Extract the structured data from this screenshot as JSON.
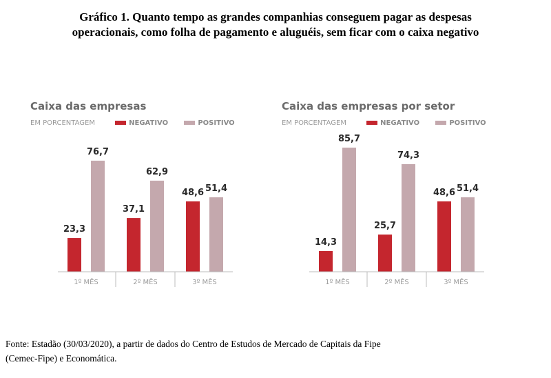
{
  "page_title": {
    "line1": "Gráfico 1. Quanto tempo as grandes companhias conseguem pagar as despesas",
    "line2": "operacionais, como folha de pagamento e aluguéis, sem ficar com o caixa negativo"
  },
  "source": {
    "line1": "Fonte: Estadão (30/03/2020), a partir de dados do Centro de Estudos de Mercado de Capitais da Fipe",
    "line2": "(Cemec-Fipe) e Economática."
  },
  "colors": {
    "negativo": "#c4262e",
    "positivo": "#c4a8ad",
    "axis": "#bdbdbd"
  },
  "chart_data": [
    {
      "type": "bar",
      "title": "Caixa das empresas",
      "unit_label": "EM PORCENTAGEM",
      "categories": [
        "1º MÊS",
        "2º MÊS",
        "3º MÊS"
      ],
      "series": [
        {
          "name": "NEGATIVO",
          "values": [
            23.3,
            37.1,
            48.6
          ],
          "labels": [
            "23,3",
            "37,1",
            "48,6"
          ]
        },
        {
          "name": "POSITIVO",
          "values": [
            76.7,
            62.9,
            51.4
          ],
          "labels": [
            "76,7",
            "62,9",
            "51,4"
          ]
        }
      ],
      "ylim": [
        0,
        100
      ],
      "legend": "top-left",
      "grid": false
    },
    {
      "type": "bar",
      "title": "Caixa das empresas por setor",
      "unit_label": "EM PORCENTAGEM",
      "categories": [
        "1º MÊS",
        "2º MÊS",
        "3º MÊS"
      ],
      "series": [
        {
          "name": "NEGATIVO",
          "values": [
            14.3,
            25.7,
            48.6
          ],
          "labels": [
            "14,3",
            "25,7",
            "48,6"
          ]
        },
        {
          "name": "POSITIVO",
          "values": [
            85.7,
            74.3,
            51.4
          ],
          "labels": [
            "85,7",
            "74,3",
            "51,4"
          ]
        }
      ],
      "ylim": [
        0,
        100
      ],
      "legend": "top-left",
      "grid": false
    }
  ]
}
